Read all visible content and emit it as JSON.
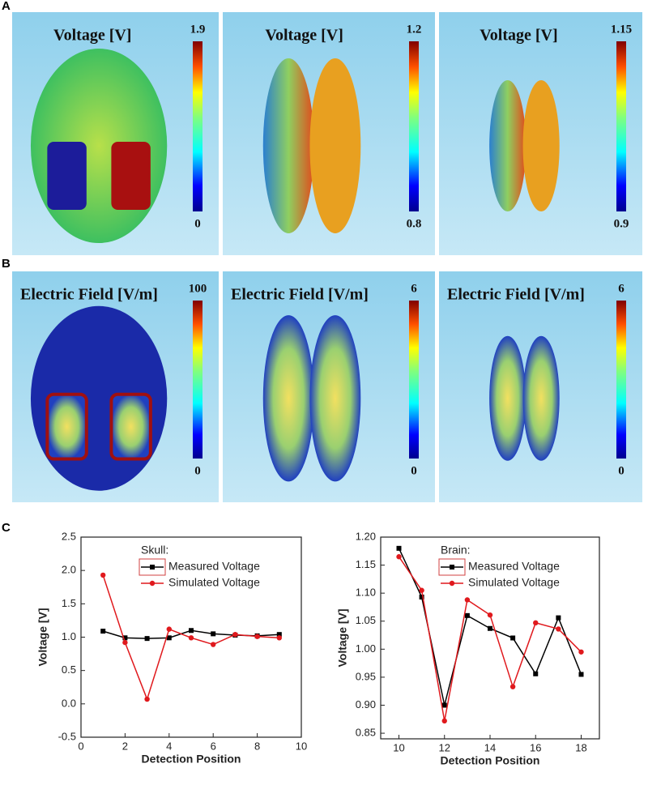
{
  "panel_labels": [
    "A",
    "B",
    "C"
  ],
  "renders": [
    {
      "title": "Voltage [V]",
      "scale_max": 1.9,
      "scale_min": 0
    },
    {
      "title": "Voltage [V]",
      "scale_max": 1.2,
      "scale_min": 0.8
    },
    {
      "title": "Voltage [V]",
      "scale_max": 1.15,
      "scale_min": 0.9
    },
    {
      "title": "Electric Field [V/m]",
      "scale_max": 100,
      "scale_min": 0
    },
    {
      "title": "Electric Field [V/m]",
      "scale_max": 6,
      "scale_min": 0
    },
    {
      "title": "Electric Field [V/m]",
      "scale_max": 6,
      "scale_min": 0
    }
  ],
  "chart_data": [
    {
      "type": "line",
      "x_label": "Detection Position",
      "y_label": "Voltage [V]",
      "legend_title": "Skull:",
      "x": [
        1,
        2,
        3,
        4,
        5,
        6,
        7,
        8,
        9
      ],
      "series": [
        {
          "name": "Measured Voltage",
          "color": "#000000",
          "marker": "square",
          "values": [
            1.09,
            0.99,
            0.98,
            0.99,
            1.1,
            1.05,
            1.03,
            1.02,
            1.04
          ]
        },
        {
          "name": "Simulated Voltage",
          "color": "#e0191d",
          "marker": "circle",
          "values": [
            1.93,
            0.92,
            0.07,
            1.12,
            0.99,
            0.89,
            1.04,
            1.01,
            0.99
          ]
        }
      ],
      "xlim": [
        0,
        10
      ],
      "xticks": [
        0,
        2,
        4,
        6,
        8,
        10
      ],
      "ylim": [
        -0.5,
        2.5
      ],
      "yticks": [
        -0.5,
        {
          "value": 0,
          "label": "0.0"
        },
        0.5,
        {
          "value": 1,
          "label": "1.0"
        },
        1.5,
        {
          "value": 2,
          "label": "2.0"
        },
        2.5
      ]
    },
    {
      "type": "line",
      "x_label": "Detection Position",
      "y_label": "Voltage [V]",
      "legend_title": "Brain:",
      "x": [
        10,
        11,
        12,
        13,
        14,
        15,
        16,
        17,
        18
      ],
      "series": [
        {
          "name": "Measured Voltage",
          "color": "#000000",
          "marker": "square",
          "values": [
            1.18,
            1.093,
            0.9,
            1.06,
            1.037,
            1.02,
            0.956,
            1.056,
            0.955
          ]
        },
        {
          "name": "Simulated Voltage",
          "color": "#e0191d",
          "marker": "circle",
          "values": [
            1.165,
            1.105,
            0.872,
            1.088,
            1.061,
            0.933,
            1.047,
            1.036,
            0.995
          ]
        }
      ],
      "xlim": [
        9.2,
        18.8
      ],
      "xticks": [
        10,
        12,
        14,
        16,
        18
      ],
      "ylim": [
        0.84,
        1.2
      ],
      "yticks": [
        0.85,
        {
          "value": 0.9,
          "label": "0.90"
        },
        0.95,
        {
          "value": 1,
          "label": "1.00"
        },
        1.05,
        {
          "value": 1.1,
          "label": "1.10"
        },
        1.15,
        {
          "value": 1.2,
          "label": "1.20"
        }
      ]
    }
  ]
}
